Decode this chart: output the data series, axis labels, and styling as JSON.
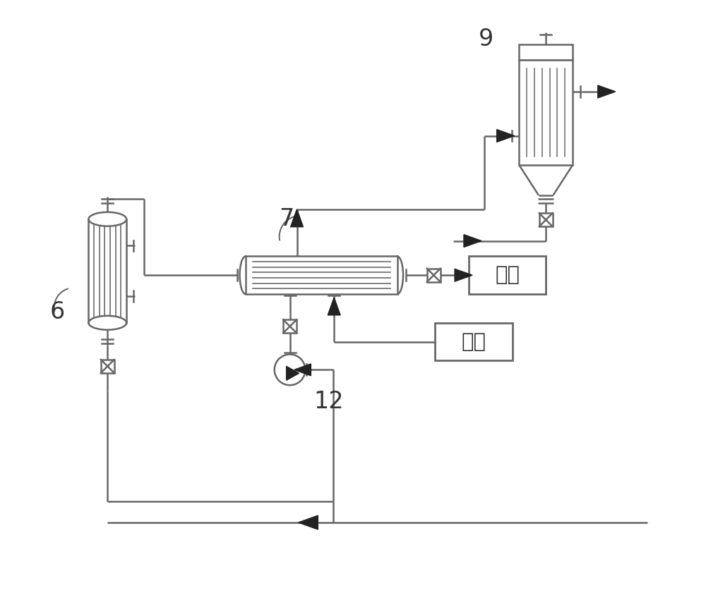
{
  "bg_color": "#ffffff",
  "lc": "#666666",
  "lw": 1.8,
  "ac": "#222222",
  "label_9": "9",
  "label_6": "6",
  "label_7": "7",
  "label_12": "12",
  "label_fei_shui": "废水",
  "label_zheng_qi": "蕲汽",
  "figw": 10.0,
  "figh": 8.48,
  "dpi": 100,
  "xlim": [
    0,
    10
  ],
  "ylim": [
    0,
    8.48
  ]
}
